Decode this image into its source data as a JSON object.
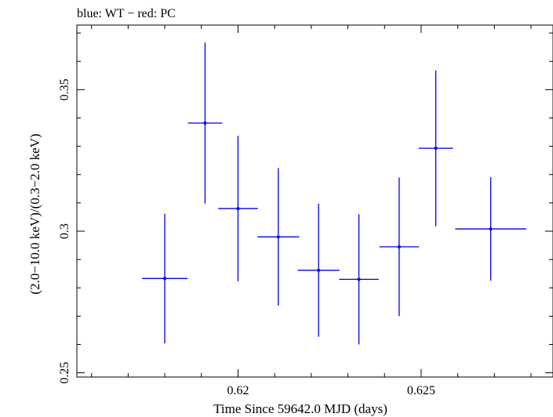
{
  "chart_data": {
    "type": "scatter",
    "title": "blue: WT − red: PC",
    "xlabel": "Time Since 59642.0 MJD (days)",
    "ylabel": "(2.0−10.0 keV)/(0.3−2.0 keV)",
    "xlim": [
      0.6156,
      0.6286
    ],
    "ylim": [
      0.2485,
      0.3728
    ],
    "x_ticks": [
      {
        "value": 0.62,
        "label": "0.62"
      },
      {
        "value": 0.625,
        "label": "0.625"
      }
    ],
    "y_ticks": [
      {
        "value": 0.25,
        "label": "0.25"
      },
      {
        "value": 0.3,
        "label": "0.3"
      },
      {
        "value": 0.35,
        "label": "0.35"
      }
    ],
    "series": [
      {
        "name": "WT",
        "color": "#0000dd",
        "points": [
          {
            "x": 0.618,
            "xerr": 0.00062,
            "y": 0.2833,
            "yerr_lo": 0.0229,
            "yerr_hi": 0.0229
          },
          {
            "x": 0.6191,
            "xerr": 0.00047,
            "y": 0.3382,
            "yerr_lo": 0.0284,
            "yerr_hi": 0.0284
          },
          {
            "x": 0.62,
            "xerr": 0.00054,
            "y": 0.308,
            "yerr_lo": 0.0257,
            "yerr_hi": 0.0257
          },
          {
            "x": 0.6211,
            "xerr": 0.00057,
            "y": 0.298,
            "yerr_lo": 0.0243,
            "yerr_hi": 0.0243
          },
          {
            "x": 0.6222,
            "xerr": 0.00057,
            "y": 0.2862,
            "yerr_lo": 0.0235,
            "yerr_hi": 0.0235
          },
          {
            "x": 0.6233,
            "xerr": 0.00054,
            "y": 0.283,
            "yerr_lo": 0.023,
            "yerr_hi": 0.023
          },
          {
            "x": 0.6244,
            "xerr": 0.00054,
            "y": 0.2945,
            "yerr_lo": 0.0245,
            "yerr_hi": 0.0245
          },
          {
            "x": 0.6254,
            "xerr": 0.00047,
            "y": 0.3293,
            "yerr_lo": 0.0275,
            "yerr_hi": 0.0275
          },
          {
            "x": 0.6269,
            "xerr": 0.00097,
            "y": 0.3008,
            "yerr_lo": 0.0183,
            "yerr_hi": 0.0183
          }
        ]
      }
    ],
    "grid": false
  }
}
